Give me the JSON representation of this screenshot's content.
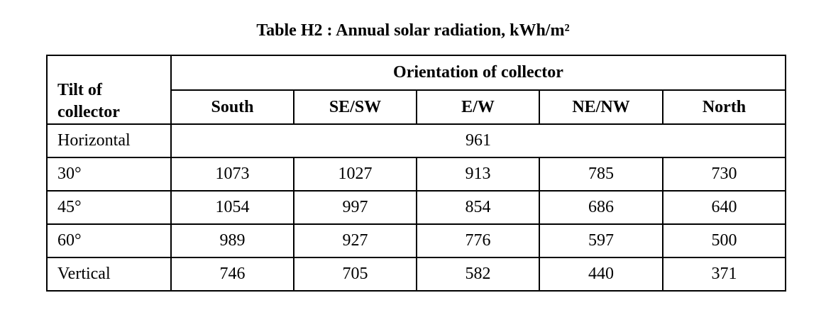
{
  "caption": "Table H2 : Annual solar radiation, kWh/m²",
  "headers": {
    "tilt": "Tilt of collector",
    "orientation": "Orientation of collector",
    "directions": [
      "South",
      "SE/SW",
      "E/W",
      "NE/NW",
      "North"
    ]
  },
  "rows": [
    {
      "tilt": "Horizontal",
      "merged": "961"
    },
    {
      "tilt": "30°",
      "values": [
        "1073",
        "1027",
        "913",
        "785",
        "730"
      ]
    },
    {
      "tilt": "45°",
      "values": [
        "1054",
        "997",
        "854",
        "686",
        "640"
      ]
    },
    {
      "tilt": "60°",
      "values": [
        "989",
        "927",
        "776",
        "597",
        "500"
      ]
    },
    {
      "tilt": "Vertical",
      "values": [
        "746",
        "705",
        "582",
        "440",
        "371"
      ]
    }
  ]
}
